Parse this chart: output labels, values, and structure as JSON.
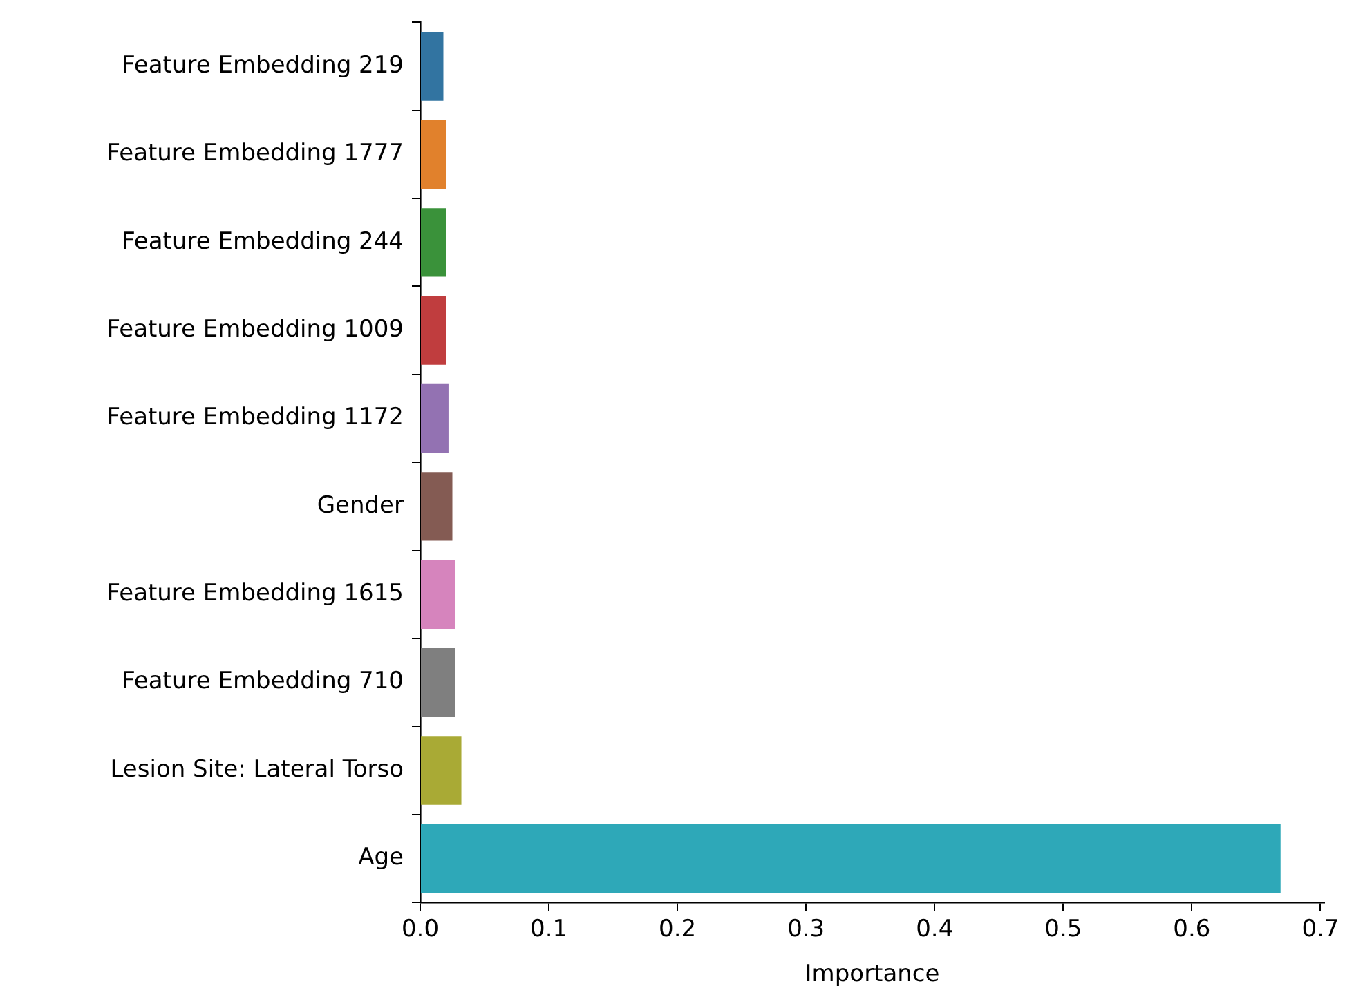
{
  "chart_data": {
    "type": "bar",
    "orientation": "horizontal",
    "xlabel": "Importance",
    "categories": [
      "Feature Embedding 219",
      "Feature Embedding 1777",
      "Feature Embedding 244",
      "Feature Embedding 1009",
      "Feature Embedding 1172",
      "Gender",
      "Feature Embedding 1615",
      "Feature Embedding 710",
      "Lesion Site: Lateral Torso",
      "Age"
    ],
    "values": [
      0.018,
      0.02,
      0.02,
      0.02,
      0.022,
      0.025,
      0.027,
      0.027,
      0.032,
      0.669
    ],
    "colors": [
      "#3274a1",
      "#e1812c",
      "#3a923a",
      "#c03d3e",
      "#9372b2",
      "#845b53",
      "#d684bd",
      "#7f7f7f",
      "#a9aa35",
      "#2ea8b8"
    ],
    "xlim": [
      0,
      0.703
    ],
    "xticks": [
      {
        "value": 0,
        "label": "0.0"
      },
      0.1,
      0.2,
      0.3,
      0.4,
      0.5,
      0.6,
      0.7
    ],
    "grid": false,
    "legend": false
  }
}
